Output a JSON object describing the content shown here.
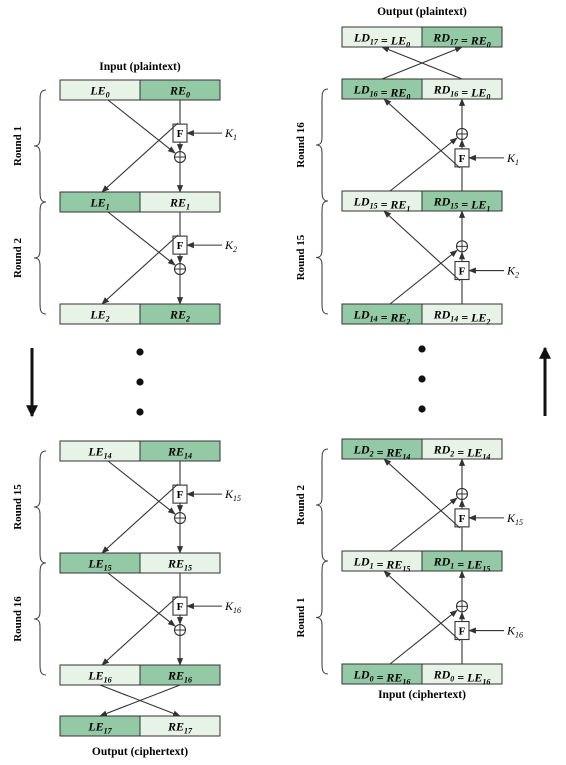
{
  "colors": {
    "dark": "#93c9a4",
    "light": "#e7f3e6",
    "stroke": "#333333"
  },
  "icons": {
    "f_box": "F",
    "xor": "⊕"
  },
  "captions": {
    "enc_input": "Input (plaintext)",
    "enc_output": "Output (ciphertext)",
    "dec_output": "Output (plaintext)",
    "dec_input": "Input (ciphertext)"
  },
  "encryption": {
    "rows": [
      {
        "left": [
          [
            "LE",
            "0"
          ]
        ],
        "right": [
          [
            "RE",
            "0"
          ]
        ]
      },
      {
        "left": [
          [
            "LE",
            "1"
          ]
        ],
        "right": [
          [
            "RE",
            "1"
          ]
        ]
      },
      {
        "left": [
          [
            "LE",
            "2"
          ]
        ],
        "right": [
          [
            "RE",
            "2"
          ]
        ]
      },
      {
        "left": [
          [
            "LE",
            "14"
          ]
        ],
        "right": [
          [
            "RE",
            "14"
          ]
        ]
      },
      {
        "left": [
          [
            "LE",
            "15"
          ]
        ],
        "right": [
          [
            "RE",
            "15"
          ]
        ]
      },
      {
        "left": [
          [
            "LE",
            "16"
          ]
        ],
        "right": [
          [
            "RE",
            "16"
          ]
        ]
      },
      {
        "left": [
          [
            "LE",
            "17"
          ]
        ],
        "right": [
          [
            "RE",
            "17"
          ]
        ]
      }
    ],
    "rounds": [
      "Round 1",
      "Round 2",
      "Round 15",
      "Round 16"
    ],
    "keys": [
      [
        "K",
        "1"
      ],
      [
        "K",
        "2"
      ],
      [
        "K",
        "15"
      ],
      [
        "K",
        "16"
      ]
    ]
  },
  "decryption": {
    "rows": [
      {
        "left": [
          [
            "LD",
            "17"
          ],
          [
            "= LE",
            "0"
          ]
        ],
        "right": [
          [
            "RD",
            "17"
          ],
          [
            "= RE",
            "0"
          ]
        ]
      },
      {
        "left": [
          [
            "LD",
            "16"
          ],
          [
            "= RE",
            "0"
          ]
        ],
        "right": [
          [
            "RD",
            "16"
          ],
          [
            "= LE",
            "0"
          ]
        ]
      },
      {
        "left": [
          [
            "LD",
            "15"
          ],
          [
            "= RE",
            "1"
          ]
        ],
        "right": [
          [
            "RD",
            "15"
          ],
          [
            "= LE",
            "1"
          ]
        ]
      },
      {
        "left": [
          [
            "LD",
            "14"
          ],
          [
            "= RE",
            "2"
          ]
        ],
        "right": [
          [
            "RD",
            "14"
          ],
          [
            "= LE",
            "2"
          ]
        ]
      },
      {
        "left": [
          [
            "LD",
            "2"
          ],
          [
            "= RE",
            "14"
          ]
        ],
        "right": [
          [
            "RD",
            "2"
          ],
          [
            "= LE",
            "14"
          ]
        ]
      },
      {
        "left": [
          [
            "LD",
            "1"
          ],
          [
            "= RE",
            "15"
          ]
        ],
        "right": [
          [
            "RD",
            "1"
          ],
          [
            "= LE",
            "15"
          ]
        ]
      },
      {
        "left": [
          [
            "LD",
            "0"
          ],
          [
            "= RE",
            "16"
          ]
        ],
        "right": [
          [
            "RD",
            "0"
          ],
          [
            "= LE",
            "16"
          ]
        ]
      }
    ],
    "rounds": [
      "Round 16",
      "Round 15",
      "Round 2",
      "Round 1"
    ],
    "keys": [
      [
        "K",
        "1"
      ],
      [
        "K",
        "2"
      ],
      [
        "K",
        "15"
      ],
      [
        "K",
        "16"
      ]
    ]
  }
}
